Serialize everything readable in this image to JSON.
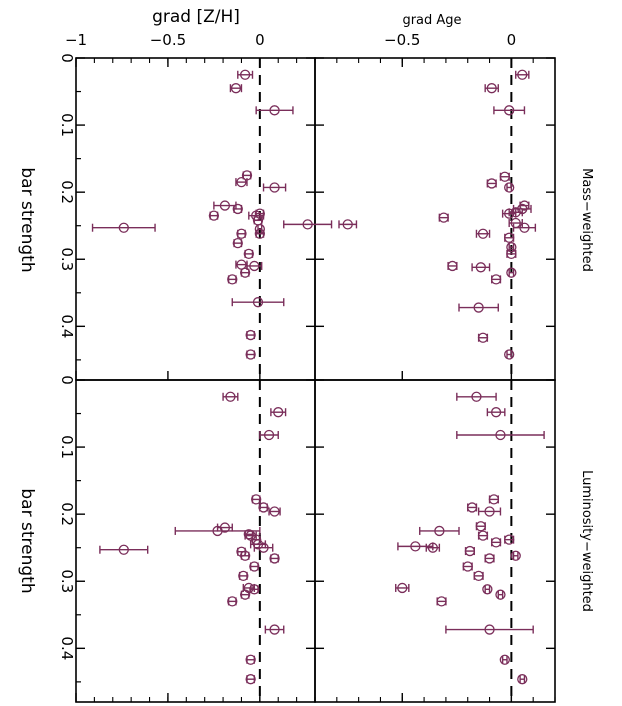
{
  "chart_data": {
    "type": "scatter",
    "orientation": "rotated-90",
    "colors": {
      "points": "#7a2e5a",
      "axes": "#000000",
      "zero_line": "#000000"
    },
    "x_axis_shared": {
      "label": "bar strength",
      "range": [
        0,
        0.48
      ],
      "ticks": [
        0,
        0.1,
        0.2,
        0.3,
        0.4
      ],
      "tick_labels": [
        "0",
        "0.1",
        "0.2",
        "0.3",
        "0.4"
      ]
    },
    "row_labels": [
      "Mass−weighted",
      "Luminosity−weighted"
    ],
    "column_titles": [
      "grad [Z/H]",
      "grad Age"
    ],
    "columns": [
      {
        "title": "grad [Z/H]",
        "range": [
          -1,
          0.3
        ],
        "ticks": [
          -1,
          -0.5,
          0
        ],
        "tick_labels": [
          "−1",
          "−0.5",
          "0"
        ]
      },
      {
        "title": "grad Age",
        "range": [
          -0.9,
          0.2
        ],
        "ticks": [
          -0.5,
          0
        ],
        "tick_labels": [
          "−0.5",
          "0"
        ]
      }
    ],
    "panels": [
      {
        "id": "zh-mass",
        "row": 0,
        "col": 0,
        "points": [
          {
            "bar": 0.025,
            "val": -0.08,
            "err": 0.04
          },
          {
            "bar": 0.045,
            "val": -0.13,
            "err": 0.03
          },
          {
            "bar": 0.078,
            "val": 0.08,
            "err": 0.1
          },
          {
            "bar": 0.175,
            "val": -0.07,
            "err": 0.02
          },
          {
            "bar": 0.185,
            "val": -0.1,
            "err": 0.03
          },
          {
            "bar": 0.193,
            "val": 0.08,
            "err": 0.06
          },
          {
            "bar": 0.22,
            "val": -0.19,
            "err": 0.06
          },
          {
            "bar": 0.225,
            "val": -0.12,
            "err": 0.02
          },
          {
            "bar": 0.235,
            "val": -0.25,
            "err": 0.02
          },
          {
            "bar": 0.235,
            "val": -0.02,
            "err": 0.04
          },
          {
            "bar": 0.232,
            "val": 0.0,
            "err": 0.02
          },
          {
            "bar": 0.242,
            "val": -0.01,
            "err": 0.02
          },
          {
            "bar": 0.248,
            "val": 0.26,
            "err": 0.13
          },
          {
            "bar": 0.253,
            "val": -0.74,
            "err": 0.17
          },
          {
            "bar": 0.255,
            "val": 0.0,
            "err": 0.01
          },
          {
            "bar": 0.262,
            "val": 0.0,
            "err": 0.02
          },
          {
            "bar": 0.262,
            "val": -0.1,
            "err": 0.02
          },
          {
            "bar": 0.276,
            "val": -0.12,
            "err": 0.02
          },
          {
            "bar": 0.292,
            "val": -0.06,
            "err": 0.02
          },
          {
            "bar": 0.308,
            "val": -0.1,
            "err": 0.03
          },
          {
            "bar": 0.31,
            "val": -0.03,
            "err": 0.04
          },
          {
            "bar": 0.32,
            "val": -0.08,
            "err": 0.02
          },
          {
            "bar": 0.33,
            "val": -0.15,
            "err": 0.02
          },
          {
            "bar": 0.364,
            "val": -0.01,
            "err": 0.14
          },
          {
            "bar": 0.413,
            "val": -0.05,
            "err": 0.02
          },
          {
            "bar": 0.442,
            "val": -0.05,
            "err": 0.02
          }
        ]
      },
      {
        "id": "age-mass",
        "row": 0,
        "col": 1,
        "points": [
          {
            "bar": 0.025,
            "val": 0.05,
            "err": 0.03
          },
          {
            "bar": 0.045,
            "val": -0.09,
            "err": 0.03
          },
          {
            "bar": 0.078,
            "val": -0.01,
            "err": 0.07
          },
          {
            "bar": 0.177,
            "val": -0.03,
            "err": 0.02
          },
          {
            "bar": 0.187,
            "val": -0.09,
            "err": 0.02
          },
          {
            "bar": 0.193,
            "val": -0.01,
            "err": 0.01
          },
          {
            "bar": 0.22,
            "val": 0.06,
            "err": 0.02
          },
          {
            "bar": 0.225,
            "val": 0.05,
            "err": 0.04
          },
          {
            "bar": 0.23,
            "val": 0.02,
            "err": 0.03
          },
          {
            "bar": 0.232,
            "val": -0.01,
            "err": 0.03
          },
          {
            "bar": 0.238,
            "val": -0.31,
            "err": 0.02
          },
          {
            "bar": 0.248,
            "val": -0.75,
            "err": 0.04
          },
          {
            "bar": 0.246,
            "val": 0.02,
            "err": 0.03
          },
          {
            "bar": 0.253,
            "val": 0.06,
            "err": 0.05
          },
          {
            "bar": 0.262,
            "val": -0.13,
            "err": 0.03
          },
          {
            "bar": 0.268,
            "val": -0.01,
            "err": 0.02
          },
          {
            "bar": 0.282,
            "val": 0.0,
            "err": 0.01
          },
          {
            "bar": 0.292,
            "val": 0.0,
            "err": 0.02
          },
          {
            "bar": 0.31,
            "val": -0.27,
            "err": 0.02
          },
          {
            "bar": 0.312,
            "val": -0.14,
            "err": 0.04
          },
          {
            "bar": 0.32,
            "val": 0.0,
            "err": 0.01
          },
          {
            "bar": 0.33,
            "val": -0.07,
            "err": 0.02
          },
          {
            "bar": 0.372,
            "val": -0.15,
            "err": 0.09
          },
          {
            "bar": 0.417,
            "val": -0.13,
            "err": 0.02
          },
          {
            "bar": 0.442,
            "val": -0.01,
            "err": 0.01
          }
        ]
      },
      {
        "id": "zh-lum",
        "row": 1,
        "col": 0,
        "points": [
          {
            "bar": 0.025,
            "val": -0.16,
            "err": 0.04
          },
          {
            "bar": 0.048,
            "val": 0.1,
            "err": 0.04
          },
          {
            "bar": 0.082,
            "val": 0.05,
            "err": 0.05
          },
          {
            "bar": 0.178,
            "val": -0.02,
            "err": 0.02
          },
          {
            "bar": 0.19,
            "val": 0.02,
            "err": 0.02
          },
          {
            "bar": 0.196,
            "val": 0.08,
            "err": 0.03
          },
          {
            "bar": 0.22,
            "val": -0.19,
            "err": 0.04
          },
          {
            "bar": 0.225,
            "val": -0.23,
            "err": 0.23
          },
          {
            "bar": 0.23,
            "val": -0.06,
            "err": 0.02
          },
          {
            "bar": 0.232,
            "val": -0.05,
            "err": 0.03
          },
          {
            "bar": 0.238,
            "val": -0.02,
            "err": 0.02
          },
          {
            "bar": 0.245,
            "val": -0.01,
            "err": 0.04
          },
          {
            "bar": 0.25,
            "val": 0.02,
            "err": 0.05
          },
          {
            "bar": 0.253,
            "val": -0.74,
            "err": 0.13
          },
          {
            "bar": 0.256,
            "val": -0.1,
            "err": 0.02
          },
          {
            "bar": 0.262,
            "val": -0.08,
            "err": 0.02
          },
          {
            "bar": 0.266,
            "val": 0.08,
            "err": 0.02
          },
          {
            "bar": 0.278,
            "val": -0.03,
            "err": 0.02
          },
          {
            "bar": 0.292,
            "val": -0.09,
            "err": 0.02
          },
          {
            "bar": 0.31,
            "val": -0.06,
            "err": 0.03
          },
          {
            "bar": 0.312,
            "val": -0.03,
            "err": 0.02
          },
          {
            "bar": 0.32,
            "val": -0.08,
            "err": 0.02
          },
          {
            "bar": 0.33,
            "val": -0.15,
            "err": 0.02
          },
          {
            "bar": 0.372,
            "val": 0.08,
            "err": 0.05
          },
          {
            "bar": 0.417,
            "val": -0.05,
            "err": 0.02
          },
          {
            "bar": 0.446,
            "val": -0.05,
            "err": 0.02
          }
        ]
      },
      {
        "id": "age-lum",
        "row": 1,
        "col": 1,
        "points": [
          {
            "bar": 0.025,
            "val": -0.16,
            "err": 0.09
          },
          {
            "bar": 0.048,
            "val": -0.07,
            "err": 0.04
          },
          {
            "bar": 0.082,
            "val": -0.05,
            "err": 0.2
          },
          {
            "bar": 0.178,
            "val": -0.08,
            "err": 0.02
          },
          {
            "bar": 0.19,
            "val": -0.18,
            "err": 0.02
          },
          {
            "bar": 0.196,
            "val": -0.1,
            "err": 0.05
          },
          {
            "bar": 0.218,
            "val": -0.14,
            "err": 0.02
          },
          {
            "bar": 0.225,
            "val": -0.33,
            "err": 0.09
          },
          {
            "bar": 0.232,
            "val": -0.13,
            "err": 0.02
          },
          {
            "bar": 0.238,
            "val": -0.01,
            "err": 0.02
          },
          {
            "bar": 0.242,
            "val": -0.07,
            "err": 0.02
          },
          {
            "bar": 0.248,
            "val": -0.44,
            "err": 0.08
          },
          {
            "bar": 0.25,
            "val": -0.36,
            "err": 0.03
          },
          {
            "bar": 0.255,
            "val": -0.19,
            "err": 0.02
          },
          {
            "bar": 0.262,
            "val": 0.02,
            "err": 0.01
          },
          {
            "bar": 0.266,
            "val": -0.1,
            "err": 0.02
          },
          {
            "bar": 0.278,
            "val": -0.2,
            "err": 0.02
          },
          {
            "bar": 0.292,
            "val": -0.15,
            "err": 0.02
          },
          {
            "bar": 0.31,
            "val": -0.5,
            "err": 0.03
          },
          {
            "bar": 0.312,
            "val": -0.11,
            "err": 0.01
          },
          {
            "bar": 0.32,
            "val": -0.05,
            "err": 0.01
          },
          {
            "bar": 0.33,
            "val": -0.32,
            "err": 0.02
          },
          {
            "bar": 0.372,
            "val": -0.1,
            "err": 0.2
          },
          {
            "bar": 0.417,
            "val": -0.03,
            "err": 0.01
          },
          {
            "bar": 0.446,
            "val": 0.05,
            "err": 0.01
          }
        ]
      }
    ]
  }
}
